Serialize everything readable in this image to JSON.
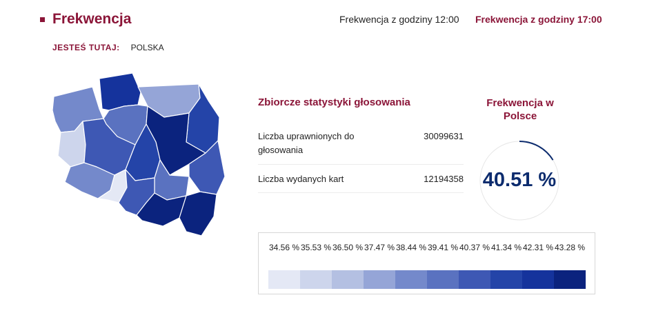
{
  "header": {
    "title": "Frekwencja",
    "tabs": [
      {
        "label": "Frekwencja z godziny 12:00",
        "active": false
      },
      {
        "label": "Frekwencja z godziny 17:00",
        "active": true
      }
    ]
  },
  "breadcrumb": {
    "label": "JESTEŚ TUTAJ:",
    "value": "POLSKA"
  },
  "stats": {
    "title": "Zbiorcze statystyki głosowania",
    "rows": [
      {
        "label": "Liczba uprawnionych do głosowania",
        "value": "30099631"
      },
      {
        "label": "Liczba wydanych kart",
        "value": "12194358"
      }
    ]
  },
  "turnout": {
    "title": "Frekwencja w Polsce",
    "value": "40.51 %",
    "percent": 40.51
  },
  "legend": {
    "labels": [
      "34.56 %",
      "35.53 %",
      "36.50 %",
      "37.47 %",
      "38.44 %",
      "39.41 %",
      "40.37 %",
      "41.34 %",
      "42.31 %",
      "43.28 %"
    ],
    "colors": [
      "#e4e8f5",
      "#cdd5ec",
      "#b4c0e2",
      "#95a5d7",
      "#7489cb",
      "#5a72c0",
      "#3e58b4",
      "#2444a8",
      "#15339c",
      "#0b237e"
    ]
  },
  "colors": {
    "accent": "#8b1538",
    "turnout": "#0d2c6e"
  }
}
